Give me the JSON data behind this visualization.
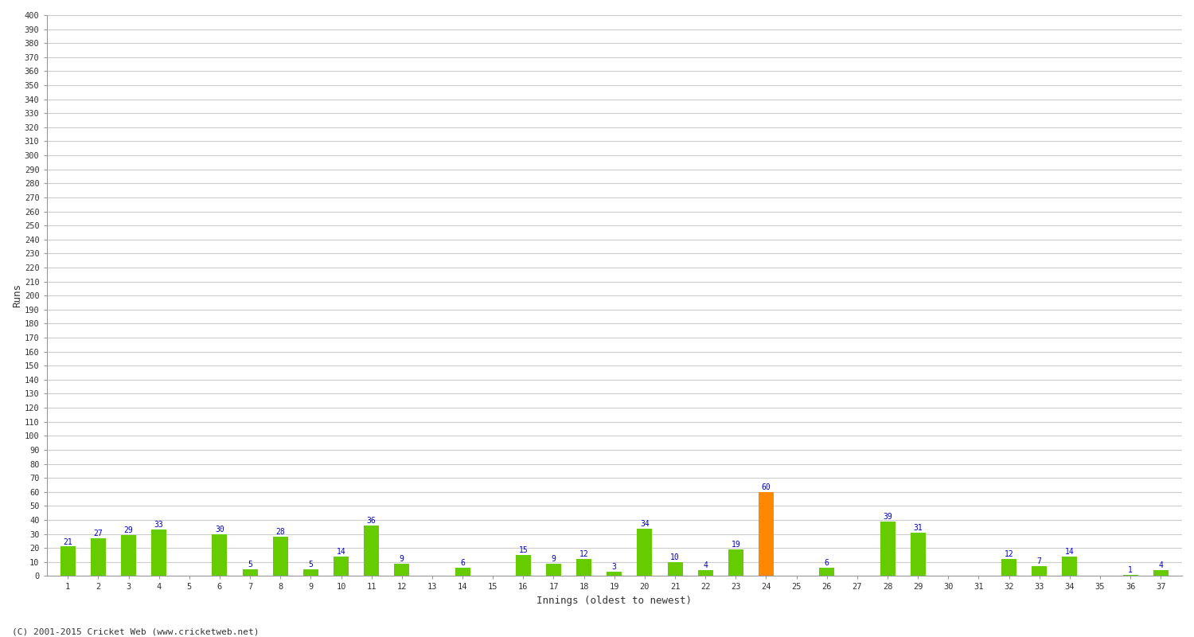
{
  "values": [
    21,
    27,
    29,
    33,
    0,
    30,
    5,
    28,
    5,
    14,
    36,
    9,
    0,
    6,
    0,
    15,
    9,
    12,
    3,
    34,
    10,
    4,
    19,
    60,
    0,
    6,
    0,
    39,
    31,
    0,
    0,
    12,
    7,
    14,
    0,
    1,
    4
  ],
  "labels": [
    "1",
    "2",
    "3",
    "4",
    "5",
    "6",
    "7",
    "8",
    "9",
    "10",
    "11",
    "12",
    "13",
    "14",
    "15",
    "16",
    "17",
    "18",
    "19",
    "20",
    "21",
    "22",
    "23",
    "24",
    "25",
    "26",
    "27",
    "28",
    "29",
    "30",
    "31",
    "32",
    "33",
    "34",
    "35",
    "36",
    "37"
  ],
  "highlight_index": 23,
  "bar_color": "#66cc00",
  "highlight_color": "#ff8800",
  "ylabel": "Runs",
  "xlabel": "Innings (oldest to newest)",
  "ylim": [
    0,
    400
  ],
  "ytick_step": 10,
  "background_color": "#ffffff",
  "grid_color": "#cccccc",
  "value_label_color": "#0000cc",
  "footer": "(C) 2001-2015 Cricket Web (www.cricketweb.net)"
}
